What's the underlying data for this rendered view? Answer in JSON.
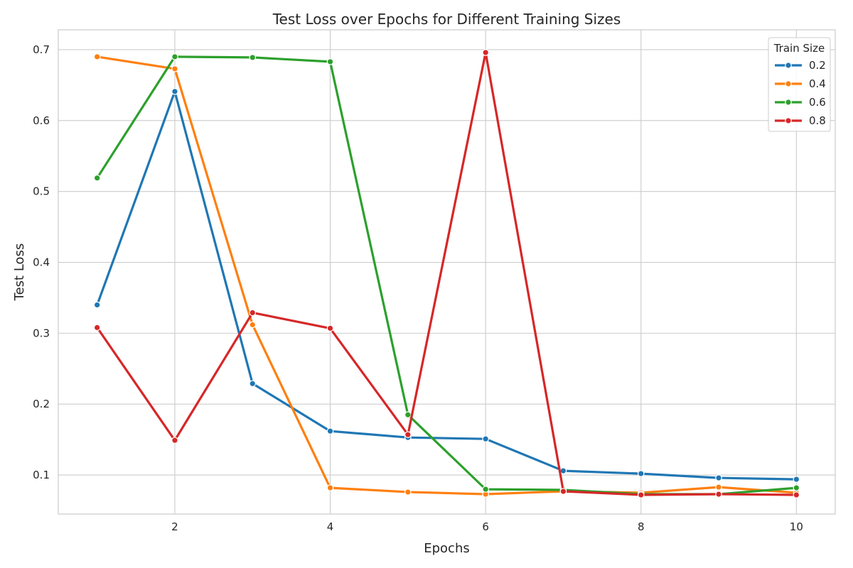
{
  "chart_data": {
    "type": "line",
    "title": "Test Loss over Epochs for Different Training Sizes",
    "xlabel": "Epochs",
    "ylabel": "Test Loss",
    "x": [
      1,
      2,
      3,
      4,
      5,
      6,
      7,
      8,
      9,
      10
    ],
    "xlim": [
      0.5,
      10.5
    ],
    "ylim": [
      0.045,
      0.728
    ],
    "xticks": [
      2,
      4,
      6,
      8,
      10
    ],
    "xtick_labels": [
      "2",
      "4",
      "6",
      "8",
      "10"
    ],
    "yticks": [
      0.1,
      0.2,
      0.3,
      0.4,
      0.5,
      0.6,
      0.7
    ],
    "ytick_labels": [
      "0.1",
      "0.2",
      "0.3",
      "0.4",
      "0.5",
      "0.6",
      "0.7"
    ],
    "grid": true,
    "legend": {
      "title": "Train Size",
      "position": "top-right"
    },
    "series": [
      {
        "name": "0.2",
        "color": "#1f77b4",
        "values": [
          0.34,
          0.641,
          0.229,
          0.162,
          0.153,
          0.151,
          0.106,
          0.102,
          0.096,
          0.094
        ]
      },
      {
        "name": "0.4",
        "color": "#ff7f0e",
        "values": [
          0.69,
          0.673,
          0.312,
          0.082,
          0.076,
          0.073,
          0.077,
          0.075,
          0.083,
          0.075
        ]
      },
      {
        "name": "0.6",
        "color": "#2ca02c",
        "values": [
          0.519,
          0.69,
          0.689,
          0.683,
          0.185,
          0.08,
          0.079,
          0.073,
          0.073,
          0.082
        ]
      },
      {
        "name": "0.8",
        "color": "#d62728",
        "values": [
          0.308,
          0.149,
          0.329,
          0.307,
          0.157,
          0.696,
          0.077,
          0.072,
          0.073,
          0.072
        ]
      }
    ]
  }
}
